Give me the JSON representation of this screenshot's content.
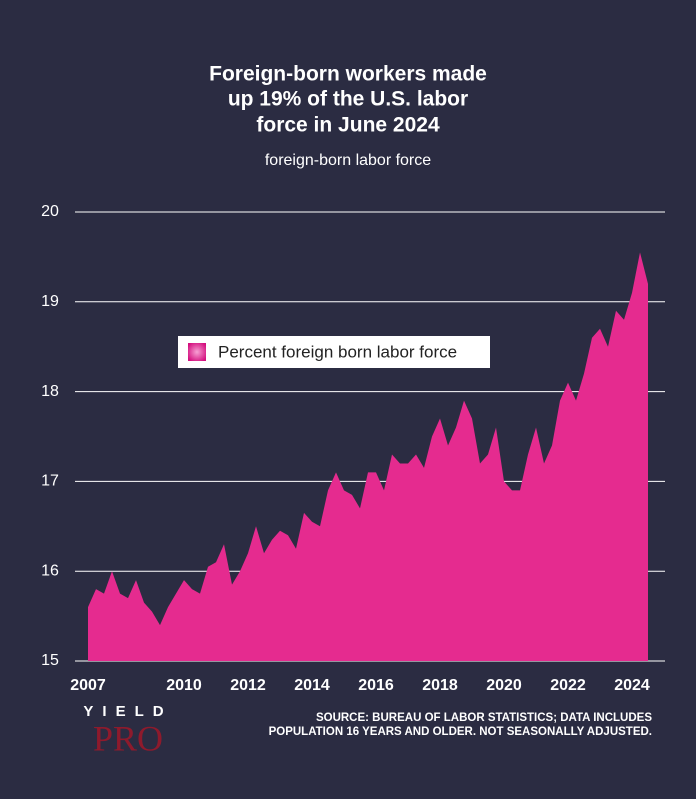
{
  "chart_data": {
    "type": "area",
    "title": [
      "Foreign-born workers made",
      "up 19% of the U.S. labor",
      "force in June 2024"
    ],
    "subtitle": "foreign-born labor force",
    "x": [
      2007.0,
      2007.25,
      2007.5,
      2007.75,
      2008.0,
      2008.25,
      2008.5,
      2008.75,
      2009.0,
      2009.25,
      2009.5,
      2009.75,
      2010.0,
      2010.25,
      2010.5,
      2010.75,
      2011.0,
      2011.25,
      2011.5,
      2011.75,
      2012.0,
      2012.25,
      2012.5,
      2012.75,
      2013.0,
      2013.25,
      2013.5,
      2013.75,
      2014.0,
      2014.25,
      2014.5,
      2014.75,
      2015.0,
      2015.25,
      2015.5,
      2015.75,
      2016.0,
      2016.25,
      2016.5,
      2016.75,
      2017.0,
      2017.25,
      2017.5,
      2017.75,
      2018.0,
      2018.25,
      2018.5,
      2018.75,
      2019.0,
      2019.25,
      2019.5,
      2019.75,
      2020.0,
      2020.25,
      2020.5,
      2020.75,
      2021.0,
      2021.25,
      2021.5,
      2021.75,
      2022.0,
      2022.25,
      2022.5,
      2022.75,
      2023.0,
      2023.25,
      2023.5,
      2023.75,
      2024.0,
      2024.25,
      2024.5
    ],
    "series": [
      {
        "name": "Percent foreign born labor force",
        "color": "#e52b8f",
        "values": [
          15.6,
          15.8,
          15.75,
          16.0,
          15.75,
          15.7,
          15.9,
          15.65,
          15.55,
          15.4,
          15.6,
          15.75,
          15.9,
          15.8,
          15.75,
          16.05,
          16.1,
          16.3,
          15.85,
          16.0,
          16.2,
          16.5,
          16.2,
          16.35,
          16.45,
          16.4,
          16.25,
          16.65,
          16.55,
          16.5,
          16.9,
          17.1,
          16.9,
          16.85,
          16.7,
          17.1,
          17.1,
          16.9,
          17.3,
          17.2,
          17.2,
          17.3,
          17.15,
          17.5,
          17.7,
          17.4,
          17.6,
          17.9,
          17.7,
          17.2,
          17.3,
          17.6,
          17.0,
          16.9,
          16.9,
          17.3,
          17.6,
          17.2,
          17.4,
          17.9,
          18.1,
          17.9,
          18.2,
          18.6,
          18.7,
          18.5,
          18.9,
          18.8,
          19.1,
          19.55,
          19.2
        ]
      }
    ],
    "xlim": [
      2007,
      2024.5
    ],
    "xticks": [
      2007,
      2010,
      2012,
      2014,
      2016,
      2018,
      2020,
      2022,
      2024
    ],
    "ylim": [
      15,
      20
    ],
    "yticks": [
      15,
      16,
      17,
      18,
      19,
      20
    ],
    "grid": true,
    "legend": "upper-left",
    "source": [
      "SOURCE: BUREAU OF LABOR STATISTICS; DATA INCLUDES",
      "POPULATION 16 YEARS AND OLDER. NOT SEASONALLY ADJUSTED."
    ],
    "logo": {
      "top": "YIELD",
      "bottom": "PRO"
    }
  }
}
